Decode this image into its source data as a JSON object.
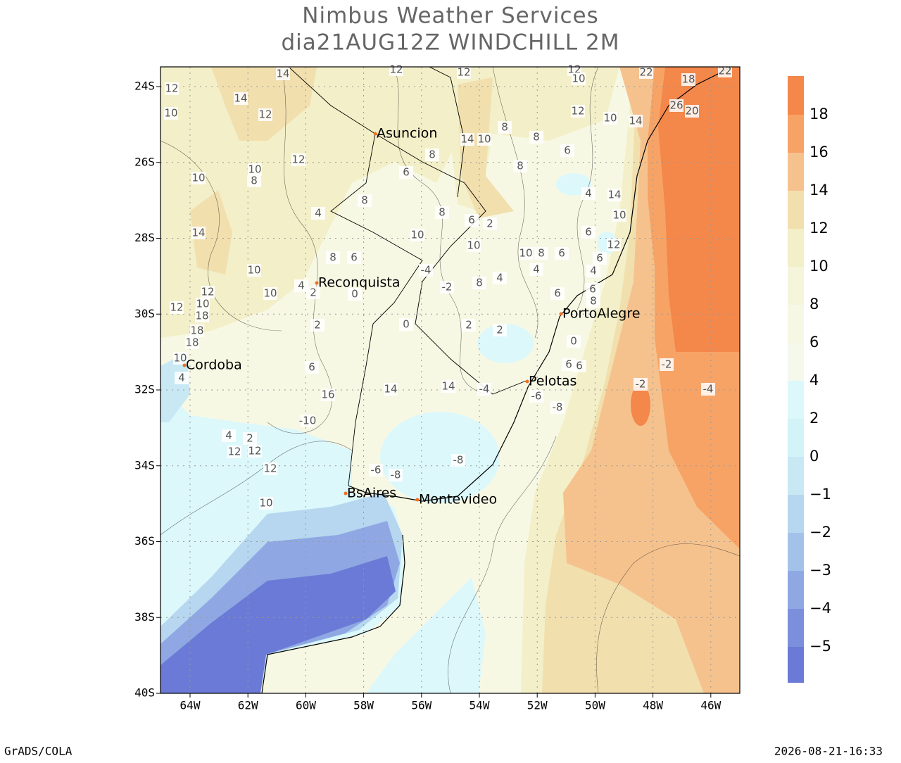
{
  "header": {
    "title_lines": [
      "Nimbus Weather Services",
      "dia21AUG12Z WINDCHILL 2M"
    ]
  },
  "map": {
    "lat_ticks": [
      "24S",
      "26S",
      "28S",
      "30S",
      "32S",
      "34S",
      "36S",
      "38S",
      "40S"
    ],
    "lon_ticks": [
      "64W",
      "62W",
      "60W",
      "58W",
      "56W",
      "54W",
      "52W",
      "50W",
      "48W",
      "46W"
    ],
    "cities": [
      "Asuncion",
      "Reconquista",
      "PortoAlegre",
      "Cordoba",
      "Pelotas",
      "BsAires",
      "Montevideo"
    ],
    "contour_labels": [
      "12",
      "12",
      "14",
      "12",
      "10",
      "22",
      "18",
      "22",
      "14",
      "12",
      "12",
      "10",
      "8",
      "14",
      "10",
      "26",
      "20",
      "14",
      "10",
      "12",
      "8",
      "6",
      "12",
      "10",
      "8",
      "8",
      "10",
      "8",
      "6",
      "8",
      "4",
      "14",
      "10",
      "14",
      "10",
      "6",
      "2",
      "4",
      "8",
      "6",
      "12",
      "10",
      "10",
      "8",
      "6",
      "6",
      "4",
      "4",
      "10",
      "8",
      "10",
      "6",
      "4",
      "2",
      "0",
      "-4",
      "-2",
      "8",
      "4",
      "6",
      "6",
      "8",
      "12",
      "12",
      "10",
      "18",
      "18",
      "18",
      "10",
      "4",
      "2",
      "0",
      "2",
      "2",
      "0",
      "6",
      "6",
      "-2",
      "-2",
      "-4",
      "6",
      "16",
      "14",
      "14",
      "-4",
      "-6",
      "-8",
      "-10",
      "4",
      "2",
      "12",
      "12",
      "12",
      "-6",
      "-8",
      "-8",
      "10"
    ]
  },
  "colorbar": {
    "labels": [
      "18",
      "16",
      "14",
      "12",
      "10",
      "8",
      "6",
      "4",
      "2",
      "0",
      "−1",
      "−2",
      "−3",
      "−4",
      "−5"
    ]
  },
  "footer": {
    "left": "GrADS/COLA",
    "right": "2026-08-21-16:33"
  }
}
